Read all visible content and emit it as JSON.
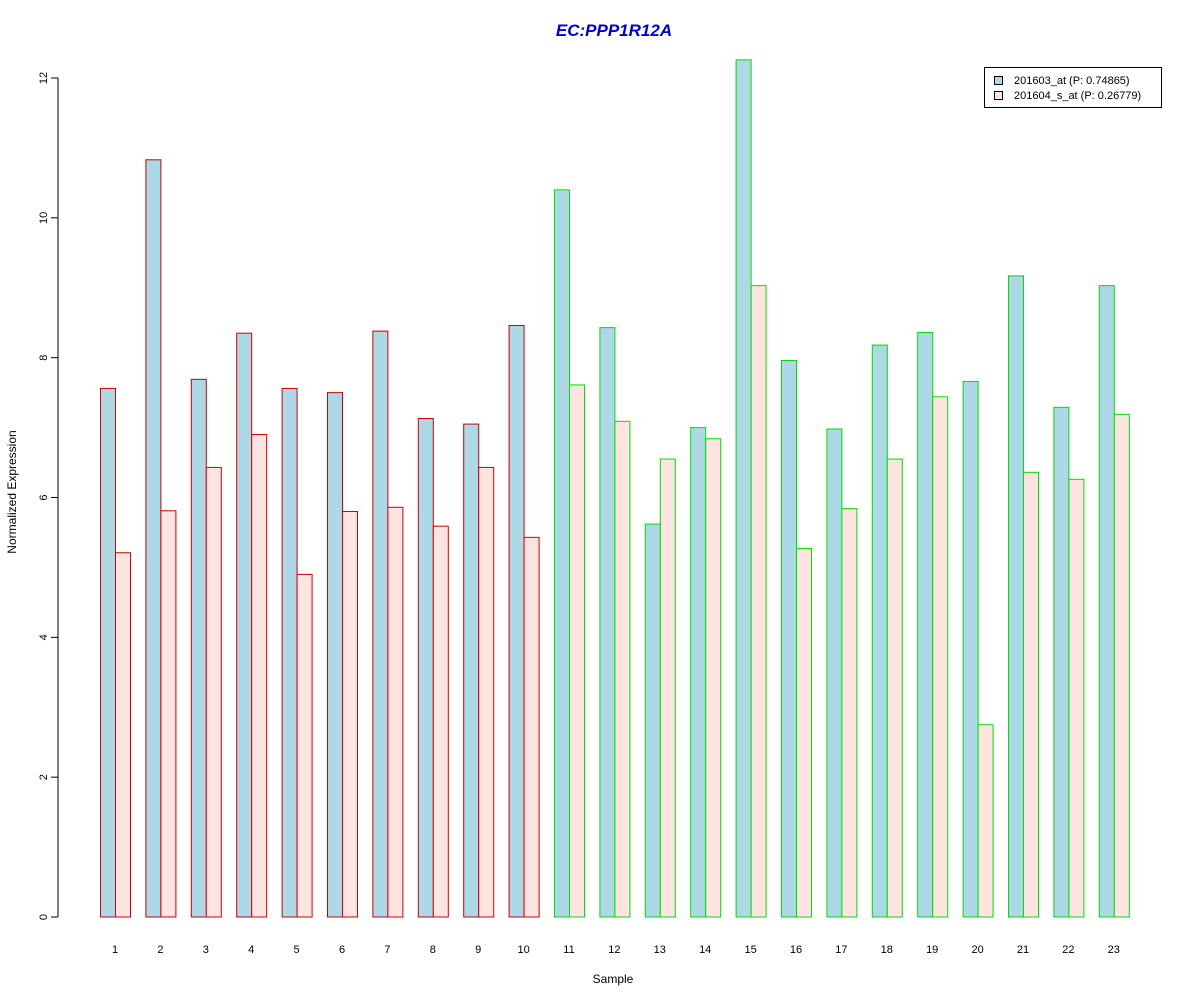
{
  "chart_data": {
    "type": "bar",
    "title": "EC:PPP1R12A",
    "xlabel": "Sample",
    "ylabel": "Normalized Expression",
    "ylim": [
      0,
      12.3
    ],
    "yticks": [
      0,
      2,
      4,
      6,
      8,
      10,
      12
    ],
    "ytick_labels": [
      "0",
      "2",
      "4",
      "6",
      "8",
      "10",
      "12"
    ],
    "categories": [
      "1",
      "2",
      "3",
      "4",
      "5",
      "6",
      "7",
      "8",
      "9",
      "10",
      "11",
      "12",
      "13",
      "14",
      "15",
      "16",
      "17",
      "18",
      "19",
      "20",
      "21",
      "22",
      "23"
    ],
    "group_border_colors": [
      "#cc0000",
      "#cc0000",
      "#cc0000",
      "#cc0000",
      "#cc0000",
      "#cc0000",
      "#cc0000",
      "#cc0000",
      "#cc0000",
      "#cc0000",
      "#00dd00",
      "#00dd00",
      "#00dd00",
      "#00dd00",
      "#00dd00",
      "#00dd00",
      "#00dd00",
      "#00dd00",
      "#00dd00",
      "#00dd00",
      "#00dd00",
      "#00dd00",
      "#00dd00"
    ],
    "series": [
      {
        "name": "201603_at (P: 0.74865)",
        "color": "#add8e6",
        "values": [
          7.56,
          10.83,
          7.69,
          8.35,
          7.56,
          7.5,
          8.38,
          7.13,
          7.05,
          8.46,
          10.4,
          8.43,
          5.62,
          7.0,
          12.26,
          7.96,
          6.98,
          8.18,
          8.36,
          7.66,
          9.17,
          7.29,
          9.03
        ]
      },
      {
        "name": "201604_s_at (P: 0.26779)",
        "color": "#fde4e1",
        "values": [
          5.21,
          5.81,
          6.43,
          6.9,
          4.9,
          5.8,
          5.86,
          5.59,
          6.43,
          5.43,
          7.61,
          7.09,
          6.55,
          6.84,
          9.03,
          5.27,
          5.84,
          6.55,
          7.44,
          2.75,
          6.36,
          6.26,
          7.19
        ]
      }
    ],
    "legend": "top-right",
    "grid": false
  }
}
